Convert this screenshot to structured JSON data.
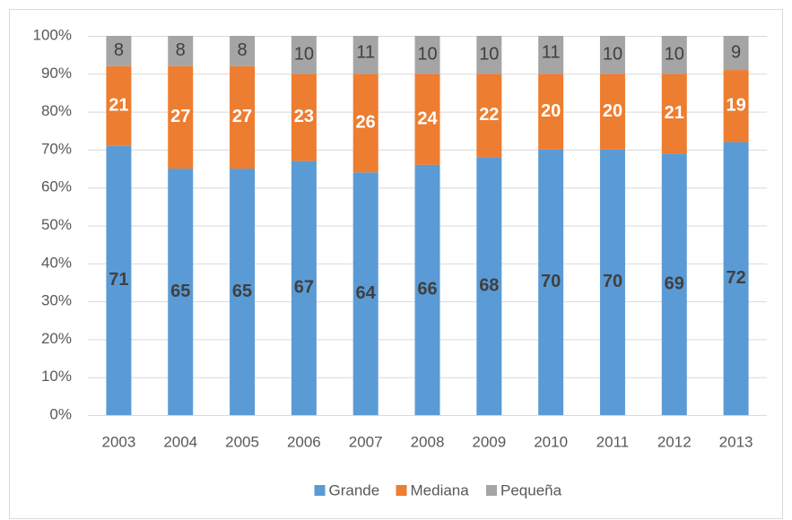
{
  "chart_data": {
    "type": "bar",
    "stacked": true,
    "categories": [
      "2003",
      "2004",
      "2005",
      "2006",
      "2007",
      "2008",
      "2009",
      "2010",
      "2011",
      "2012",
      "2013"
    ],
    "series": [
      {
        "name": "Grande",
        "color": "#5b9bd5",
        "values": [
          71,
          65,
          65,
          67,
          64,
          66,
          68,
          70,
          70,
          69,
          72
        ]
      },
      {
        "name": "Mediana",
        "color": "#ed7d31",
        "values": [
          21,
          27,
          27,
          23,
          26,
          24,
          22,
          20,
          20,
          21,
          19
        ]
      },
      {
        "name": "Pequeña",
        "color": "#a5a5a5",
        "values": [
          8,
          8,
          8,
          10,
          11,
          10,
          10,
          11,
          10,
          10,
          9
        ]
      }
    ],
    "ylim": [
      0,
      100
    ],
    "yticks": [
      {
        "value": 0,
        "label": "0%"
      },
      {
        "value": 10,
        "label": "10%"
      },
      {
        "value": 20,
        "label": "20%"
      },
      {
        "value": 30,
        "label": "30%"
      },
      {
        "value": 40,
        "label": "40%"
      },
      {
        "value": 50,
        "label": "50%"
      },
      {
        "value": 60,
        "label": "60%"
      },
      {
        "value": 70,
        "label": "70%"
      },
      {
        "value": 80,
        "label": "80%"
      },
      {
        "value": 90,
        "label": "90%"
      },
      {
        "value": 100,
        "label": "100%"
      }
    ],
    "grid": true,
    "legend": "bottom"
  }
}
